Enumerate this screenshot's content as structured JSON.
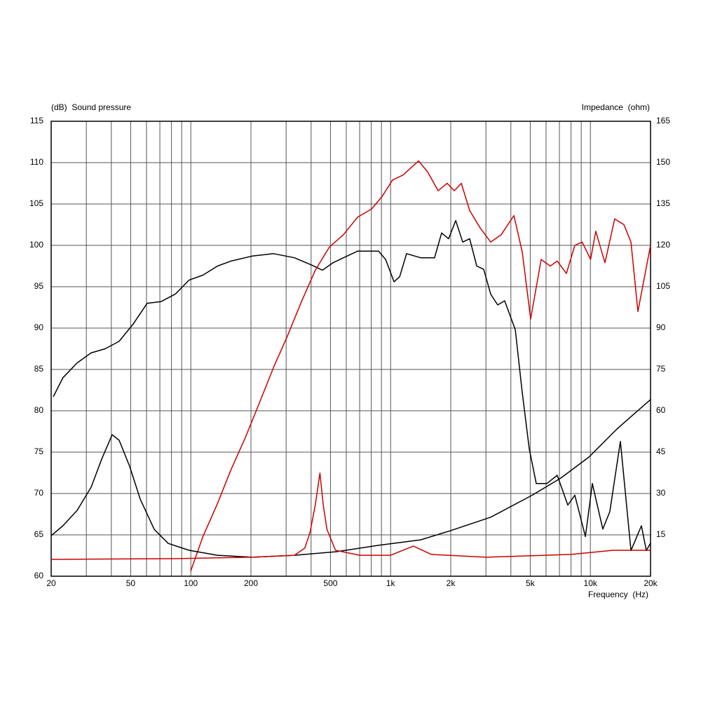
{
  "chart_data": {
    "type": "line",
    "y_label": "(dB)  Sound pressure",
    "y2_label": "Impedance  (ohm)",
    "x_label": "Frequency  (Hz)",
    "log_x": true,
    "grid": true,
    "xlim": [
      20,
      20000
    ],
    "xticks": [
      20,
      50,
      100,
      200,
      500,
      {
        "value": 1000,
        "label": "1k"
      },
      {
        "value": 2000,
        "label": "2k"
      },
      {
        "value": 5000,
        "label": "5k"
      },
      {
        "value": 10000,
        "label": "10k"
      },
      {
        "value": 20000,
        "label": "20k"
      }
    ],
    "xminor": [
      30,
      40,
      60,
      70,
      80,
      90,
      300,
      400,
      600,
      700,
      800,
      900,
      3000,
      4000,
      6000,
      7000,
      8000,
      9000
    ],
    "ylim": [
      60,
      115
    ],
    "yticks": [
      60,
      65,
      70,
      75,
      80,
      85,
      90,
      95,
      100,
      105,
      110,
      115
    ],
    "y2lim": [
      0,
      165
    ],
    "y2ticks": [
      15,
      30,
      45,
      60,
      75,
      90,
      105,
      120,
      135,
      150,
      165
    ],
    "series": [
      {
        "color": "#000000",
        "axis": "y",
        "x": [
          20.5,
          22.9,
          27,
          31.7,
          37.3,
          43.8,
          51.5,
          60.5,
          71,
          83.6,
          98,
          115,
          136,
          159,
          203,
          259,
          330,
          404,
          456,
          515,
          581,
          683,
          871,
          944,
          1040,
          1110,
          1202,
          1413,
          1660,
          1800,
          1950,
          2118,
          2296,
          2488,
          2698,
          2924,
          3170,
          3436,
          3724,
          4208,
          4560,
          4943,
          5358,
          6054,
          6824,
          7710,
          8360,
          9440,
          10232,
          11540,
          12510,
          14130,
          15960,
          18000,
          19060,
          20000
        ],
        "values": [
          81.7,
          84,
          85.8,
          87,
          87.5,
          88.4,
          90.5,
          93,
          93.2,
          94.1,
          95.8,
          96.4,
          97.5,
          98.1,
          98.7,
          99,
          98.5,
          97.6,
          97,
          97.9,
          98.5,
          99.3,
          99.3,
          98.3,
          95.6,
          96.2,
          99,
          98.5,
          98.5,
          101.5,
          100.8,
          103,
          100.4,
          100.8,
          97.5,
          97.1,
          94.1,
          92.8,
          93.3,
          89.8,
          82.2,
          75.4,
          71.2,
          71.2,
          72.2,
          68.6,
          69.8,
          64.8,
          71.2,
          65.7,
          67.8,
          76.3,
          63.1,
          66.1,
          63.1,
          64
        ]
      },
      {
        "color": "#cc0000",
        "axis": "y",
        "x": [
          99.8,
          115,
          136,
          159,
          187,
          220,
          259,
          304,
          358,
          420,
          494,
          581,
          683,
          803,
          906,
          1023,
          1154,
          1380,
          1531,
          1730,
          1920,
          2082,
          2260,
          2488,
          2808,
          3170,
          3580,
          4140,
          4560,
          5024,
          5672,
          6300,
          6824,
          7586,
          8360,
          9100,
          10020,
          10640,
          11830,
          13240,
          14720,
          15960,
          17300,
          20000
        ],
        "values": [
          60.6,
          64.8,
          68.8,
          72.9,
          76.7,
          80.9,
          85.2,
          89,
          93.2,
          97,
          99.8,
          101.3,
          103.4,
          104.4,
          105.9,
          107.9,
          108.5,
          110.2,
          108.9,
          106.6,
          107.5,
          106.6,
          107.5,
          104.2,
          102.1,
          100.4,
          101.3,
          103.6,
          99.2,
          91.1,
          98.3,
          97.5,
          98.1,
          96.6,
          100,
          100.4,
          98.3,
          101.7,
          97.9,
          103.2,
          102.5,
          100.4,
          92,
          100
        ]
      },
      {
        "color": "#000000",
        "axis": "y2",
        "x": [
          20,
          22.9,
          27,
          31.7,
          35.8,
          40.4,
          43.8,
          49.4,
          55.8,
          65.6,
          77,
          98,
          136,
          203,
          330,
          536,
          871,
          1413,
          1950,
          3170,
          5146,
          7112,
          9820,
          13580,
          20000
        ],
        "values": [
          14.7,
          18.3,
          23.9,
          32.3,
          42.5,
          51.3,
          49.3,
          39.9,
          28,
          17,
          11.9,
          9.4,
          7.6,
          6.9,
          7.6,
          8.9,
          11.2,
          13.2,
          16.3,
          21.4,
          29.5,
          35.6,
          43.2,
          53.4,
          64.1
        ]
      },
      {
        "color": "#cc0000",
        "axis": "y2",
        "x": [
          20,
          90,
          200,
          330,
          372,
          395,
          420,
          443,
          460,
          480,
          530,
          700,
          1000,
          1300,
          1600,
          3000,
          8000,
          13000,
          20000
        ],
        "values": [
          6.1,
          6.4,
          6.9,
          7.6,
          10.2,
          15.8,
          25.9,
          37.4,
          25.9,
          17,
          9.4,
          7.6,
          7.6,
          10.9,
          7.9,
          6.9,
          7.9,
          9.4,
          9.4
        ]
      }
    ]
  }
}
